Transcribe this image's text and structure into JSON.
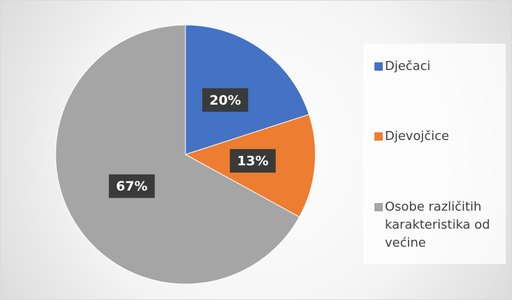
{
  "chart_data": {
    "type": "pie",
    "categories": [
      "Dječaci",
      "Djevojčice",
      "Osobe različitih karakteristika od većine"
    ],
    "values": [
      20,
      13,
      67
    ],
    "value_labels": [
      "20%",
      "13%",
      "67%"
    ],
    "colors": [
      "#4472c4",
      "#ed7d31",
      "#a5a5a5"
    ],
    "legend": "right"
  }
}
